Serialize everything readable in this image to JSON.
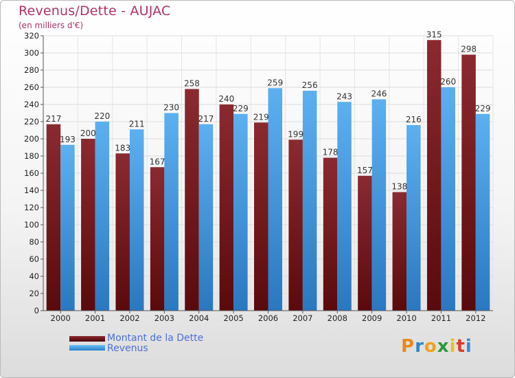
{
  "chart_data": {
    "type": "bar",
    "title": "Revenus/Dette - AUJAC",
    "subtitle": "(en milliers d'€)",
    "categories": [
      "2000",
      "2001",
      "2002",
      "2003",
      "2004",
      "2005",
      "2006",
      "2007",
      "2008",
      "2009",
      "2010",
      "2011",
      "2012"
    ],
    "series": [
      {
        "name": "Montant de la Dette",
        "color": "#7a1c20",
        "values": [
          217,
          200,
          183,
          167,
          258,
          240,
          219,
          199,
          178,
          157,
          138,
          315,
          298
        ]
      },
      {
        "name": "Revenus",
        "color": "#4ea4e8",
        "values": [
          193,
          220,
          211,
          230,
          217,
          229,
          259,
          256,
          243,
          246,
          216,
          260,
          229
        ]
      }
    ],
    "ylim": [
      0,
      320
    ],
    "yticks": [
      0,
      20,
      40,
      60,
      80,
      100,
      120,
      140,
      160,
      180,
      200,
      220,
      240,
      260,
      280,
      300,
      320
    ],
    "grid": true,
    "legend_position": "bottom-left"
  },
  "logo": {
    "letters": [
      "P",
      "r",
      "o",
      "x",
      "i",
      "t",
      "i"
    ],
    "colors": [
      "#e88a1a",
      "#2f86c8",
      "#f0a020",
      "#2a9a3a",
      "#e8c020",
      "#d83a2a",
      "#3a8ad8"
    ]
  }
}
